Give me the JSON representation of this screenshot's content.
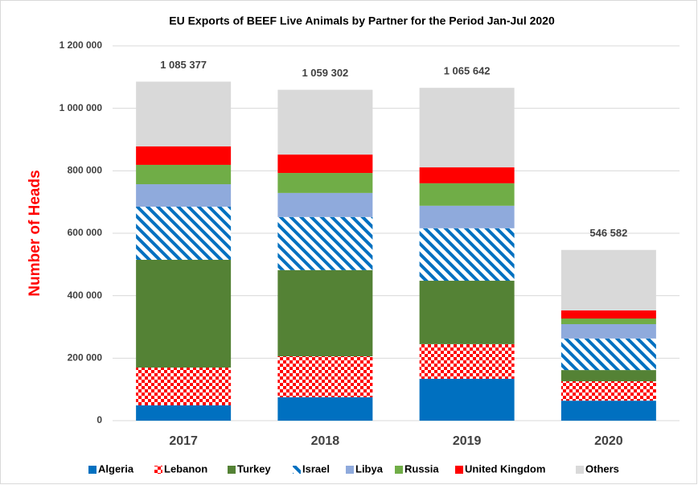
{
  "chart_data": {
    "type": "stacked_bar",
    "title": "EU Exports of BEEF Live Animals by Partner for the Period Jan-Jul 2020",
    "y_label": "Number of Heads",
    "categories": [
      "2017",
      "2018",
      "2019",
      "2020"
    ],
    "series": [
      {
        "name": "Algeria",
        "color": "#0070c0",
        "values": [
          49000,
          75000,
          134000,
          64000
        ]
      },
      {
        "name": "Lebanon",
        "color": "#ff0000",
        "pattern": "checker",
        "values": [
          121000,
          131000,
          111000,
          62000
        ]
      },
      {
        "name": "Turkey",
        "color": "#548235",
        "values": [
          345000,
          276000,
          203000,
          36000
        ]
      },
      {
        "name": "Israel",
        "color": "#0070c0",
        "pattern": "diagonal",
        "values": [
          170000,
          170000,
          168000,
          101000
        ]
      },
      {
        "name": "Libya",
        "color": "#8faadc",
        "values": [
          72000,
          77000,
          72000,
          46000
        ]
      },
      {
        "name": "Russia",
        "color": "#70ad47",
        "values": [
          62000,
          64000,
          72000,
          18000
        ]
      },
      {
        "name": "United Kingdom",
        "color": "#ff0000",
        "values": [
          59000,
          59000,
          51000,
          26000
        ]
      },
      {
        "name": "Others",
        "color": "#d9d9d9",
        "values": [
          207377,
          207302,
          254642,
          193582
        ]
      }
    ],
    "totals": {
      "values": [
        1085377,
        1059302,
        1065642,
        546582
      ],
      "value_labels": [
        "1 085 377",
        "1 059 302",
        "1 065 642",
        "546 582"
      ]
    },
    "ylim": [
      0,
      1200000
    ],
    "yticks": [
      0,
      {
        "value": 200000,
        "label": "200 000"
      },
      {
        "value": 400000,
        "label": "400 000"
      },
      {
        "value": 600000,
        "label": "600 000"
      },
      {
        "value": 800000,
        "label": "800 000"
      },
      {
        "value": 1000000,
        "label": "1 000 000"
      },
      {
        "value": 1200000,
        "label": "1 200 000"
      }
    ],
    "grid": true,
    "legend": "bottom"
  }
}
